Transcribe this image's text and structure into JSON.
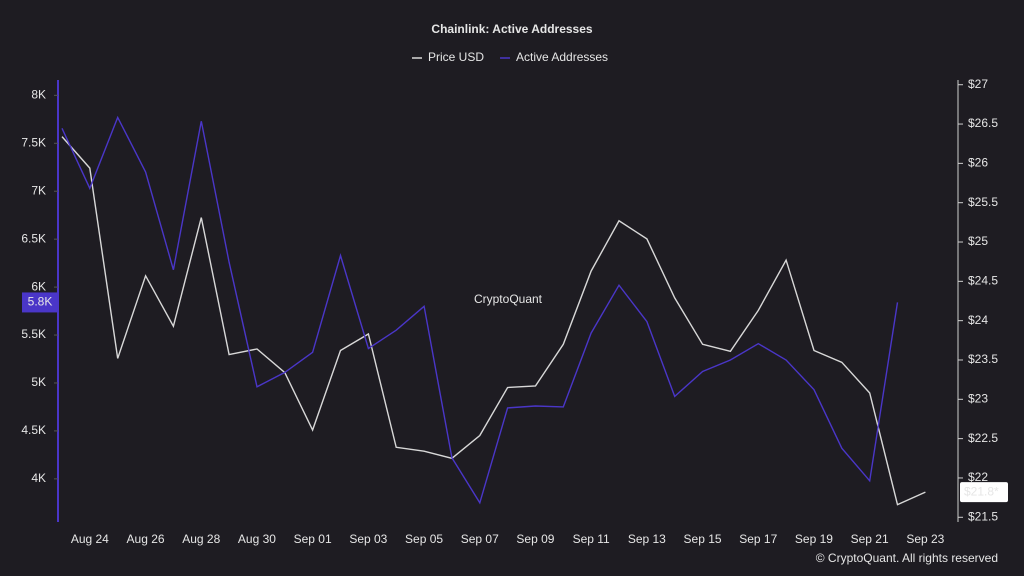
{
  "chart_data": {
    "type": "line",
    "title": "Chainlink: Active Addresses",
    "watermark": "CryptoQuant",
    "credit": "© CryptoQuant. All rights reserved",
    "categories": [
      null,
      "Aug 24",
      null,
      "Aug 26",
      null,
      "Aug 28",
      null,
      "Aug 30",
      null,
      "Sep 01",
      null,
      "Sep 03",
      null,
      "Sep 05",
      null,
      "Sep 07",
      null,
      "Sep 09",
      null,
      "Sep 11",
      null,
      "Sep 13",
      null,
      "Sep 15",
      null,
      "Sep 17",
      null,
      "Sep 19",
      null,
      "Sep 21",
      null,
      "Sep 23"
    ],
    "series": [
      {
        "name": "Price USD",
        "color": "#d8d8d8",
        "axis": "y2",
        "values": [
          26.34,
          25.94,
          23.52,
          24.57,
          23.93,
          25.31,
          23.57,
          23.64,
          23.34,
          22.61,
          23.62,
          23.83,
          22.39,
          22.34,
          22.25,
          22.54,
          23.15,
          23.17,
          23.7,
          24.63,
          25.27,
          25.04,
          24.29,
          23.7,
          23.61,
          24.13,
          24.77,
          23.62,
          23.47,
          23.08,
          21.66,
          21.82
        ],
        "value_labels": [
          null,
          null,
          null,
          null,
          null,
          null,
          null,
          null,
          null,
          null,
          null,
          null,
          null,
          null,
          null,
          null,
          null,
          null,
          null,
          null,
          null,
          null,
          null,
          null,
          null,
          null,
          null,
          null,
          null,
          null,
          null,
          "$21.8*"
        ]
      },
      {
        "name": "Active Addresses",
        "color": "#4a36c8",
        "values": [
          7656,
          7030,
          7770,
          7200,
          6180,
          7730,
          6260,
          4960,
          5110,
          5320,
          6330,
          5360,
          5550,
          5800,
          4220,
          3750,
          4740,
          4760,
          4750,
          5520,
          6020,
          5640,
          4860,
          5120,
          5240,
          5410,
          5240,
          4930,
          4320,
          3980,
          5840,
          null
        ],
        "value_labels": [
          null,
          null,
          null,
          null,
          null,
          null,
          null,
          null,
          null,
          null,
          null,
          null,
          null,
          null,
          null,
          null,
          null,
          null,
          null,
          null,
          null,
          null,
          null,
          null,
          null,
          null,
          null,
          null,
          null,
          null,
          "5.8K",
          null
        ]
      }
    ],
    "ylim": [
      3550,
      8160
    ],
    "yticks": [
      {
        "value": 4000,
        "label": "4K"
      },
      {
        "value": 4500,
        "label": "4.5K"
      },
      {
        "value": 5000,
        "label": "5K"
      },
      {
        "value": 5500,
        "label": "5.5K"
      },
      {
        "value": 6000,
        "label": "6K"
      },
      {
        "value": 6500,
        "label": "6.5K"
      },
      {
        "value": 7000,
        "label": "7K"
      },
      {
        "value": 7500,
        "label": "7.5K"
      },
      {
        "value": 8000,
        "label": "8K"
      }
    ],
    "y2lim": [
      21.44,
      27.06
    ],
    "y2ticks": [
      {
        "value": 21.5,
        "label": "$21.5"
      },
      {
        "value": 22,
        "label": "$22"
      },
      {
        "value": 22.5,
        "label": "$22.5"
      },
      {
        "value": 23,
        "label": "$23"
      },
      {
        "value": 23.5,
        "label": "$23.5"
      },
      {
        "value": 24,
        "label": "$24"
      },
      {
        "value": 24.5,
        "label": "$24.5"
      },
      {
        "value": 25,
        "label": "$25"
      },
      {
        "value": 25.5,
        "label": "$25.5"
      },
      {
        "value": 26,
        "label": "$26"
      },
      {
        "value": 26.5,
        "label": "$26.5"
      },
      {
        "value": 27,
        "label": "$27"
      }
    ]
  }
}
